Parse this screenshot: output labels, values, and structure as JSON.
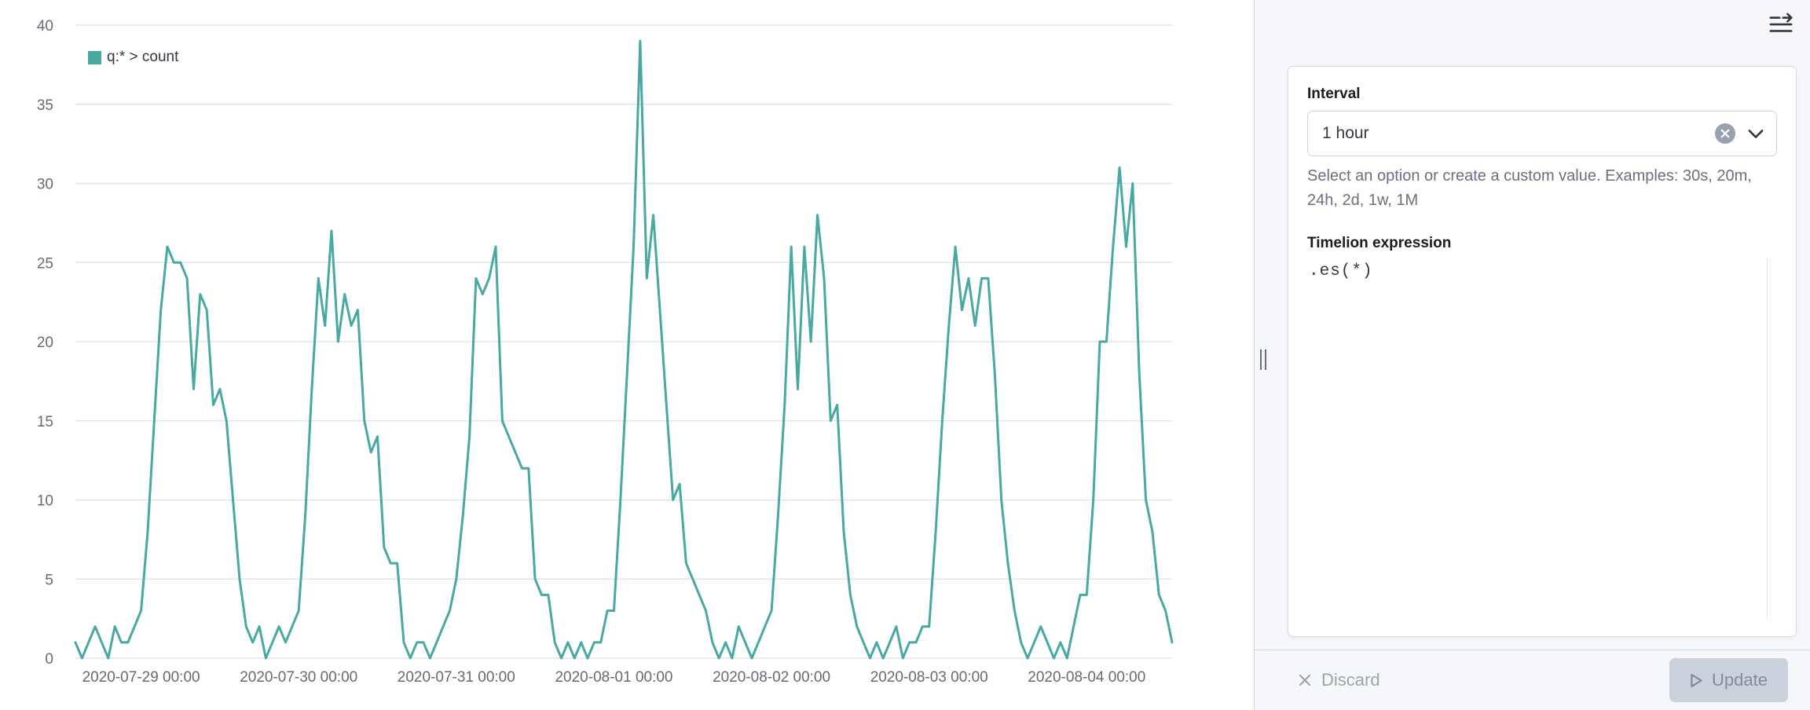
{
  "chart_data": {
    "type": "line",
    "series_name": "q:* > count",
    "color": "#48a8a2",
    "interval": "1h",
    "x_start": "2020-07-28 14:00",
    "ylim": [
      0,
      40
    ],
    "y_ticks": [
      0,
      5,
      10,
      15,
      20,
      25,
      30,
      35,
      40
    ],
    "x_tick_labels": [
      {
        "index": 10,
        "label": "2020-07-29 00:00"
      },
      {
        "index": 34,
        "label": "2020-07-30 00:00"
      },
      {
        "index": 58,
        "label": "2020-07-31 00:00"
      },
      {
        "index": 82,
        "label": "2020-08-01 00:00"
      },
      {
        "index": 106,
        "label": "2020-08-02 00:00"
      },
      {
        "index": 130,
        "label": "2020-08-03 00:00"
      },
      {
        "index": 154,
        "label": "2020-08-04 00:00"
      }
    ],
    "values": [
      1,
      0,
      1,
      2,
      1,
      0,
      2,
      1,
      1,
      2,
      3,
      8,
      15,
      22,
      26,
      25,
      25,
      24,
      17,
      23,
      22,
      16,
      17,
      15,
      10,
      5,
      2,
      1,
      2,
      0,
      1,
      2,
      1,
      2,
      3,
      9,
      17,
      24,
      21,
      27,
      20,
      23,
      21,
      22,
      15,
      13,
      14,
      7,
      6,
      6,
      1,
      0,
      1,
      1,
      0,
      1,
      2,
      3,
      5,
      9,
      14,
      24,
      23,
      24,
      26,
      15,
      14,
      13,
      12,
      12,
      5,
      4,
      4,
      1,
      0,
      1,
      0,
      1,
      0,
      1,
      1,
      3,
      3,
      10,
      18,
      26,
      39,
      24,
      28,
      22,
      16,
      10,
      11,
      6,
      5,
      4,
      3,
      1,
      0,
      1,
      0,
      2,
      1,
      0,
      1,
      2,
      3,
      9,
      16,
      26,
      17,
      26,
      20,
      28,
      24,
      15,
      16,
      8,
      4,
      2,
      1,
      0,
      1,
      0,
      1,
      2,
      0,
      1,
      1,
      2,
      2,
      8,
      15,
      21,
      26,
      22,
      24,
      21,
      24,
      24,
      18,
      10,
      6,
      3,
      1,
      0,
      1,
      2,
      1,
      0,
      1,
      0,
      2,
      4,
      4,
      10,
      20,
      20,
      26,
      31,
      26,
      30,
      18,
      10,
      8,
      4,
      3,
      1
    ],
    "legend_position": "top-left",
    "grid": true
  },
  "sidebar": {
    "interval": {
      "label": "Interval",
      "value": "1 hour",
      "help": "Select an option or create a custom value. Examples: 30s, 20m, 24h, 2d, 1w, 1M"
    },
    "expression": {
      "label": "Timelion expression",
      "value": ".es(*)"
    }
  },
  "footer": {
    "discard_label": "Discard",
    "update_label": "Update"
  },
  "icons": {
    "collapse_panel": "menu-right",
    "clear": "cross-in-circle",
    "chevron": "arrow-down",
    "discard": "cross",
    "update": "play"
  },
  "colors": {
    "series": "#48a8a2",
    "panel_bg": "#f5f7fa",
    "border": "#d3dae6",
    "muted_text": "#69707d"
  }
}
